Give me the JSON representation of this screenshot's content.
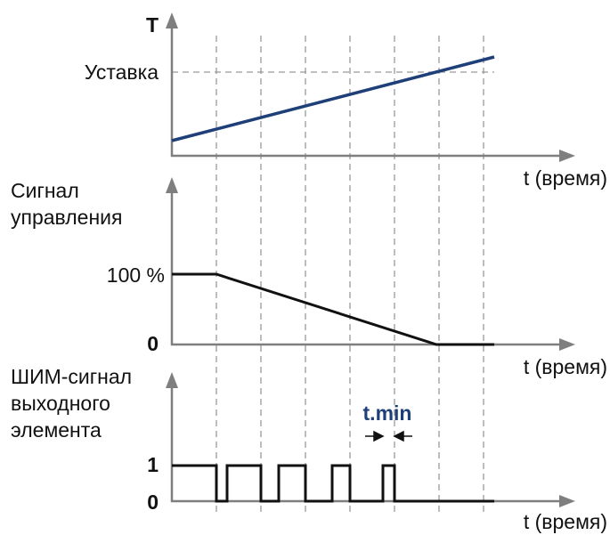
{
  "top": {
    "axis_label": "T",
    "setpoint": "Уставка",
    "time_label": "t (время)"
  },
  "middle": {
    "axis_label": [
      "Сигнал",
      "управления"
    ],
    "high": "100 %",
    "low": "0",
    "time_label": "t (время)"
  },
  "bottom": {
    "axis_label": [
      "ШИМ-сигнал",
      "выходного",
      "элемента"
    ],
    "high": "1",
    "low": "0",
    "time_label": "t (время)",
    "annotation": "t.min"
  }
}
